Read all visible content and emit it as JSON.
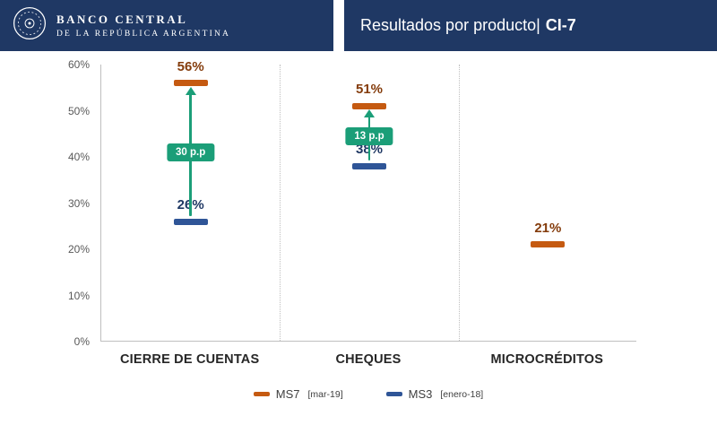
{
  "header": {
    "logo": {
      "line1": "BANCO CENTRAL",
      "line2": "DE LA REPÚBLICA ARGENTINA"
    },
    "title_regular": "Resultados por producto|",
    "title_bold": "CI-7"
  },
  "colors": {
    "header_navy": "#1F3864",
    "axis_gray": "#BFBFBF",
    "arrow_green": "#1B9E78"
  },
  "chart_data": {
    "type": "bar",
    "variant": "dash-markers-with-change-arrows",
    "title": "Resultados por producto CI-7",
    "categories": [
      "CIERRE DE CUENTAS",
      "CHEQUES",
      "MICROCRÉDITOS"
    ],
    "series": [
      {
        "name": "MS7",
        "sublabel": "[mar-19]",
        "color": "#C55A11",
        "label_color": "#843C0C",
        "values": [
          56,
          51,
          21
        ]
      },
      {
        "name": "MS3",
        "sublabel": "[enero-18]",
        "color": "#2F5597",
        "label_color": "#1F3864",
        "values": [
          26,
          38,
          null
        ]
      }
    ],
    "change_labels": [
      "30 p.p",
      "13 p.p",
      null
    ],
    "value_suffix": "%",
    "ylim": [
      0,
      60
    ],
    "yticks": [
      "0%",
      "10%",
      "20%",
      "30%",
      "40%",
      "50%",
      "60%"
    ],
    "grid": false,
    "legend_position": "bottom"
  }
}
